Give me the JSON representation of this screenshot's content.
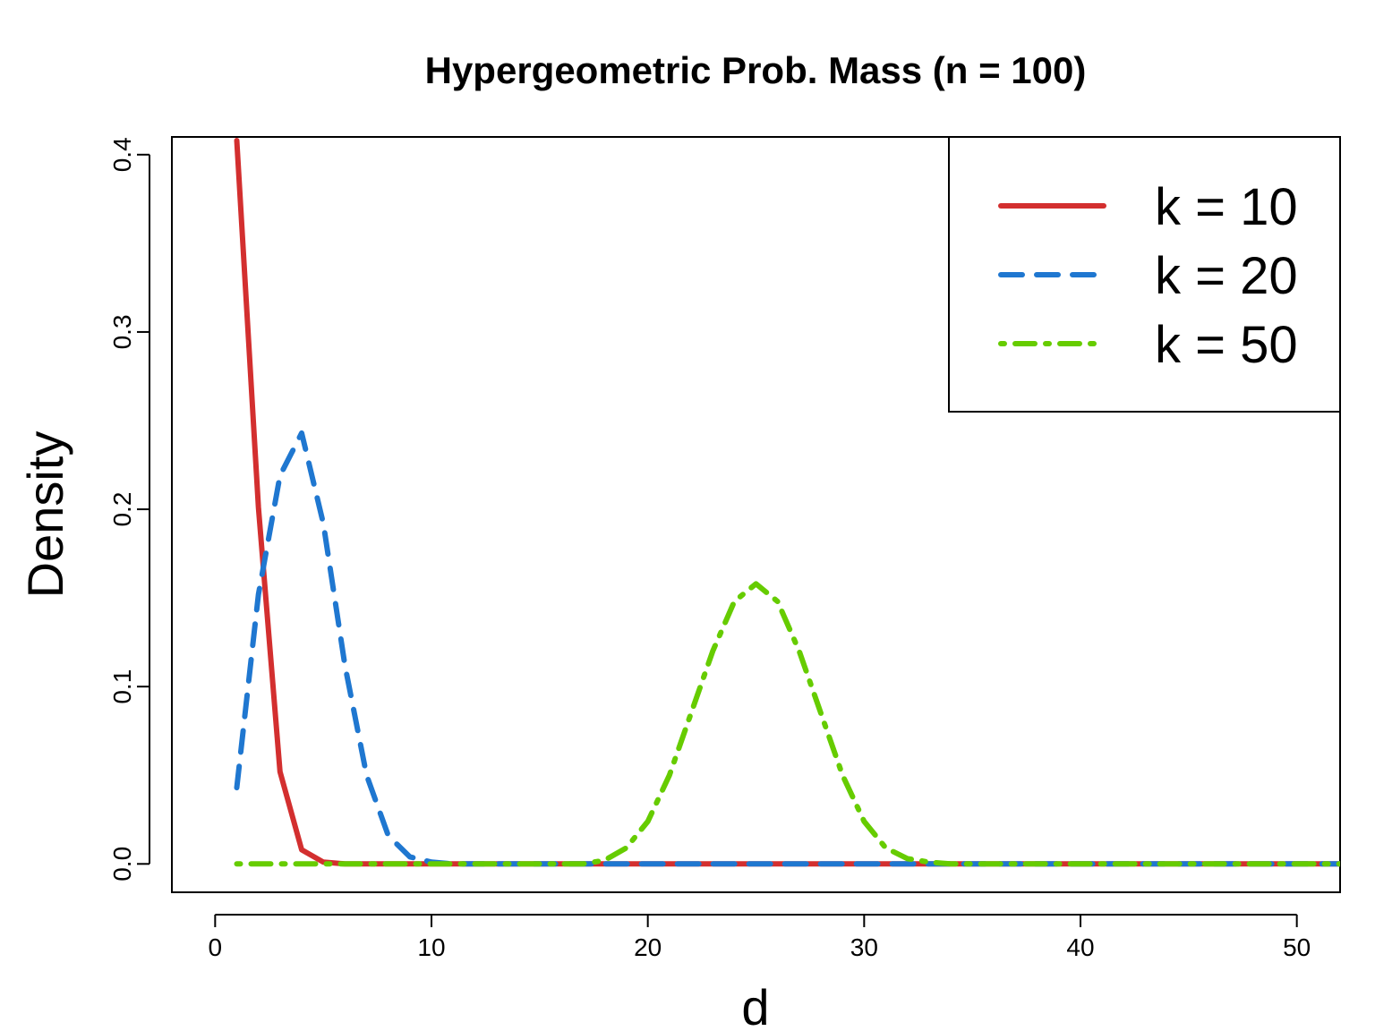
{
  "chart_data": {
    "type": "line",
    "title": "Hypergeometric Prob. Mass (n = 100)",
    "xlabel": "d",
    "ylabel": "Density",
    "xlim": [
      -2,
      52
    ],
    "ylim": [
      -0.016,
      0.41
    ],
    "x_ticks": [
      0,
      10,
      20,
      30,
      40,
      50
    ],
    "x_tick_labels": [
      "0",
      "10",
      "20",
      "30",
      "40",
      "50"
    ],
    "y_ticks": [
      0.0,
      0.1,
      0.2,
      0.3,
      0.4
    ],
    "y_tick_labels": [
      "0.0",
      "0.1",
      "0.2",
      "0.3",
      "0.4"
    ],
    "grid": false,
    "legend_position": "top-right",
    "series": [
      {
        "name": "k = 10",
        "color": "#d32f2f",
        "style": "solid",
        "x": [
          1,
          2,
          3,
          4,
          5,
          6,
          7,
          8,
          9,
          10,
          11,
          12,
          13,
          14,
          15,
          16,
          17,
          18,
          19,
          20,
          21,
          22,
          23,
          24,
          25,
          26,
          27,
          28,
          29,
          30,
          31,
          32,
          33,
          34,
          35,
          36,
          37,
          38,
          39,
          40,
          41,
          42,
          43,
          44,
          45,
          46,
          47,
          48,
          49,
          50,
          51,
          52
        ],
        "values": [
          0.408,
          0.201,
          0.052,
          0.008,
          0.001,
          0.0,
          0.0,
          0.0,
          0.0,
          0.0,
          0.0,
          0.0,
          0.0,
          0.0,
          0.0,
          0.0,
          0.0,
          0.0,
          0.0,
          0.0,
          0.0,
          0.0,
          0.0,
          0.0,
          0.0,
          0.0,
          0.0,
          0.0,
          0.0,
          0.0,
          0.0,
          0.0,
          0.0,
          0.0,
          0.0,
          0.0,
          0.0,
          0.0,
          0.0,
          0.0,
          0.0,
          0.0,
          0.0,
          0.0,
          0.0,
          0.0,
          0.0,
          0.0,
          0.0,
          0.0,
          0.0,
          0.0
        ]
      },
      {
        "name": "k = 20",
        "color": "#1f77d0",
        "style": "dashed",
        "x": [
          1,
          2,
          3,
          4,
          5,
          6,
          7,
          8,
          9,
          10,
          11,
          12,
          13,
          14,
          15,
          16,
          17,
          18,
          19,
          20,
          21,
          22,
          23,
          24,
          25,
          26,
          27,
          28,
          29,
          30,
          31,
          32,
          33,
          34,
          35,
          36,
          37,
          38,
          39,
          40,
          41,
          42,
          43,
          44,
          45,
          46,
          47,
          48,
          49,
          50,
          51,
          52
        ],
        "values": [
          0.043,
          0.152,
          0.219,
          0.243,
          0.192,
          0.112,
          0.05,
          0.016,
          0.004,
          0.001,
          0.0,
          0.0,
          0.0,
          0.0,
          0.0,
          0.0,
          0.0,
          0.0,
          0.0,
          0.0,
          0.0,
          0.0,
          0.0,
          0.0,
          0.0,
          0.0,
          0.0,
          0.0,
          0.0,
          0.0,
          0.0,
          0.0,
          0.0,
          0.0,
          0.0,
          0.0,
          0.0,
          0.0,
          0.0,
          0.0,
          0.0,
          0.0,
          0.0,
          0.0,
          0.0,
          0.0,
          0.0,
          0.0,
          0.0,
          0.0,
          0.0,
          0.0
        ]
      },
      {
        "name": "k = 50",
        "color": "#66cc00",
        "style": "dotdash",
        "x": [
          1,
          2,
          3,
          4,
          5,
          6,
          7,
          8,
          9,
          10,
          11,
          12,
          13,
          14,
          15,
          16,
          17,
          18,
          19,
          20,
          21,
          22,
          23,
          24,
          25,
          26,
          27,
          28,
          29,
          30,
          31,
          32,
          33,
          34,
          35,
          36,
          37,
          38,
          39,
          40,
          41,
          42,
          43,
          44,
          45,
          46,
          47,
          48,
          49,
          50,
          51,
          52
        ],
        "values": [
          0.0,
          0.0,
          0.0,
          0.0,
          0.0,
          0.0,
          0.0,
          0.0,
          0.0,
          0.0,
          0.0,
          0.0,
          0.0,
          0.0,
          0.0,
          0.0,
          0.0,
          0.002,
          0.009,
          0.024,
          0.05,
          0.085,
          0.12,
          0.148,
          0.158,
          0.148,
          0.12,
          0.085,
          0.05,
          0.024,
          0.009,
          0.003,
          0.001,
          0.0,
          0.0,
          0.0,
          0.0,
          0.0,
          0.0,
          0.0,
          0.0,
          0.0,
          0.0,
          0.0,
          0.0,
          0.0,
          0.0,
          0.0,
          0.0,
          0.0,
          0.0,
          0.0
        ]
      }
    ]
  }
}
